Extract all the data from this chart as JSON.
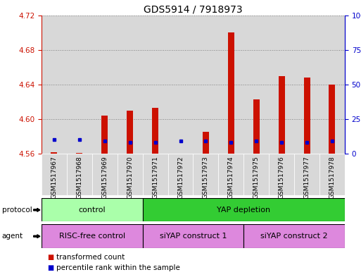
{
  "title": "GDS5914 / 7918973",
  "samples": [
    "GSM1517967",
    "GSM1517968",
    "GSM1517969",
    "GSM1517970",
    "GSM1517971",
    "GSM1517972",
    "GSM1517973",
    "GSM1517974",
    "GSM1517975",
    "GSM1517976",
    "GSM1517977",
    "GSM1517978"
  ],
  "red_values": [
    4.562,
    4.561,
    4.604,
    4.61,
    4.613,
    4.558,
    4.585,
    4.7,
    4.623,
    4.65,
    4.648,
    4.64
  ],
  "blue_pct": [
    10,
    10,
    9,
    8,
    8,
    9,
    9,
    8,
    9,
    8,
    8,
    9
  ],
  "ymin": 4.56,
  "ymax": 4.72,
  "yticks": [
    4.56,
    4.6,
    4.64,
    4.68,
    4.72
  ],
  "y2min": 0,
  "y2max": 100,
  "y2ticks": [
    0,
    25,
    50,
    75,
    100
  ],
  "bar_bottom": 4.56,
  "bar_width": 0.25,
  "red_color": "#cc1100",
  "blue_color": "#0000cc",
  "protocol_groups": [
    {
      "label": "control",
      "start": 0,
      "end": 4,
      "color": "#aaffaa"
    },
    {
      "label": "YAP depletion",
      "start": 4,
      "end": 12,
      "color": "#33cc33"
    }
  ],
  "agent_groups": [
    {
      "label": "RISC-free control",
      "start": 0,
      "end": 4,
      "color": "#dd88dd"
    },
    {
      "label": "siYAP construct 1",
      "start": 4,
      "end": 8,
      "color": "#dd88dd"
    },
    {
      "label": "siYAP construct 2",
      "start": 8,
      "end": 12,
      "color": "#dd88dd"
    }
  ],
  "legend_items": [
    {
      "label": "transformed count",
      "color": "#cc1100"
    },
    {
      "label": "percentile rank within the sample",
      "color": "#0000cc"
    }
  ],
  "col_bg_color": "#d8d8d8",
  "title_fontsize": 10,
  "tick_fontsize": 7.5,
  "sample_fontsize": 6.5
}
